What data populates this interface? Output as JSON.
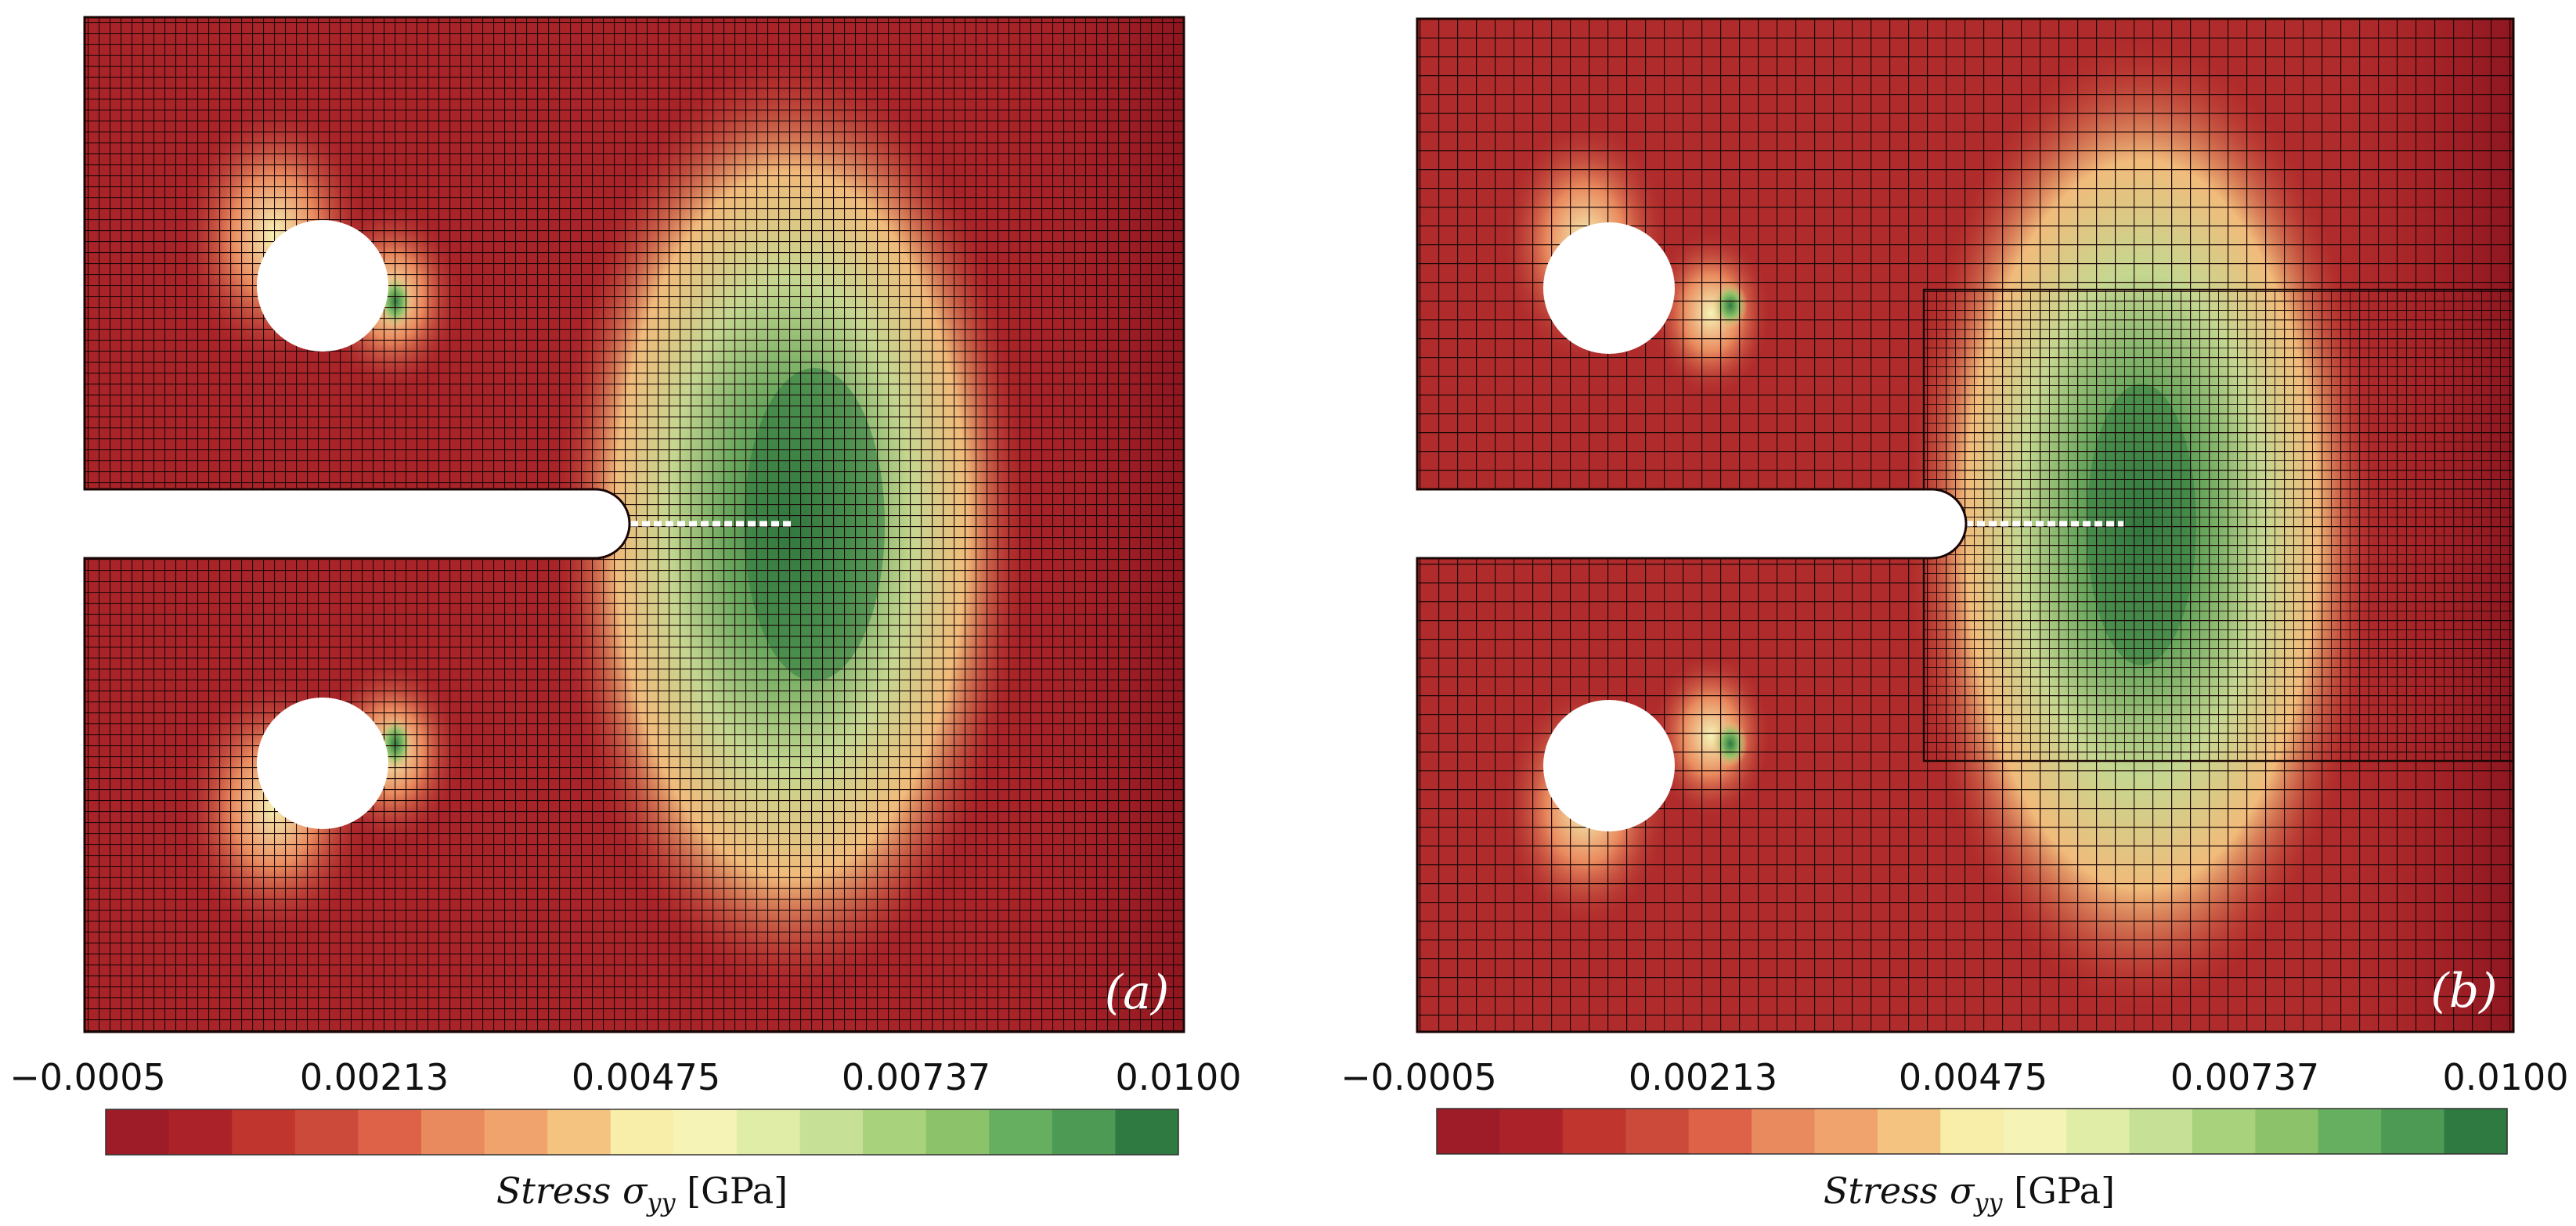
{
  "figure": {
    "panels": [
      {
        "id": "a",
        "label": "(a)",
        "mesh": "fine"
      },
      {
        "id": "b",
        "label": "(b)",
        "mesh": "coarse-with-refined-region"
      }
    ],
    "colorbar": {
      "ticks": [
        "−0.0005",
        "0.00213",
        "0.00475",
        "0.00737",
        "0.0100"
      ],
      "title_prefix": "Stress",
      "title_symbol": "σ",
      "title_subscript": "yy",
      "title_unit": "[GPa]",
      "colors": [
        "#9e1b28",
        "#ab2328",
        "#c0352d",
        "#cc4a3a",
        "#dd6248",
        "#e98a5e",
        "#f0a36d",
        "#f4c37f",
        "#f8eda9",
        "#f5f3b5",
        "#e0eda6",
        "#c6e095",
        "#a8d27c",
        "#8cc26a",
        "#66ae60",
        "#4d9a55",
        "#2f7a40"
      ]
    }
  }
}
